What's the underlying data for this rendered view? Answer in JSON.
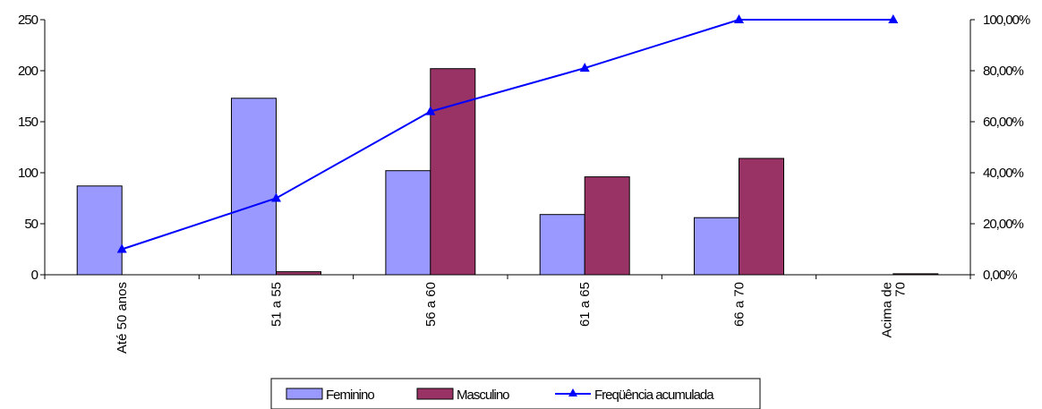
{
  "chart_data": {
    "type": "bar",
    "categories": [
      "Até 50 anos",
      "51 a  55",
      "56 a 60",
      "61 a 65",
      "66 a 70",
      "Acima de 70"
    ],
    "category_label_lines": [
      [
        "Até 50 anos"
      ],
      [
        "51 a  55"
      ],
      [
        "56 a 60"
      ],
      [
        "61 a 65"
      ],
      [
        "66 a 70"
      ],
      [
        "Acima de",
        "70"
      ]
    ],
    "series": [
      {
        "name": "Feminino",
        "type": "bar",
        "axis": "left",
        "color": "#9999ff",
        "values": [
          87,
          173,
          102,
          59,
          56,
          0
        ]
      },
      {
        "name": "Masculino",
        "type": "bar",
        "axis": "left",
        "color": "#993366",
        "values": [
          0,
          3,
          202,
          96,
          114,
          1
        ]
      },
      {
        "name": "Freqüência acumulada",
        "type": "line",
        "axis": "right",
        "color": "#0000ff",
        "marker": "triangle",
        "values": [
          10,
          30,
          64,
          81,
          100,
          100
        ]
      }
    ],
    "y_left": {
      "min": 0,
      "max": 250,
      "ticks": [
        0,
        50,
        100,
        150,
        200,
        250
      ]
    },
    "y_right": {
      "min": 0,
      "max": 100,
      "ticks": [
        0,
        20,
        40,
        60,
        80,
        100
      ],
      "tick_labels": [
        "0,00%",
        "20,00%",
        "40,00%",
        "60,00%",
        "80,00%",
        "100,00%"
      ]
    },
    "grid": false,
    "legend_position": "bottom"
  }
}
